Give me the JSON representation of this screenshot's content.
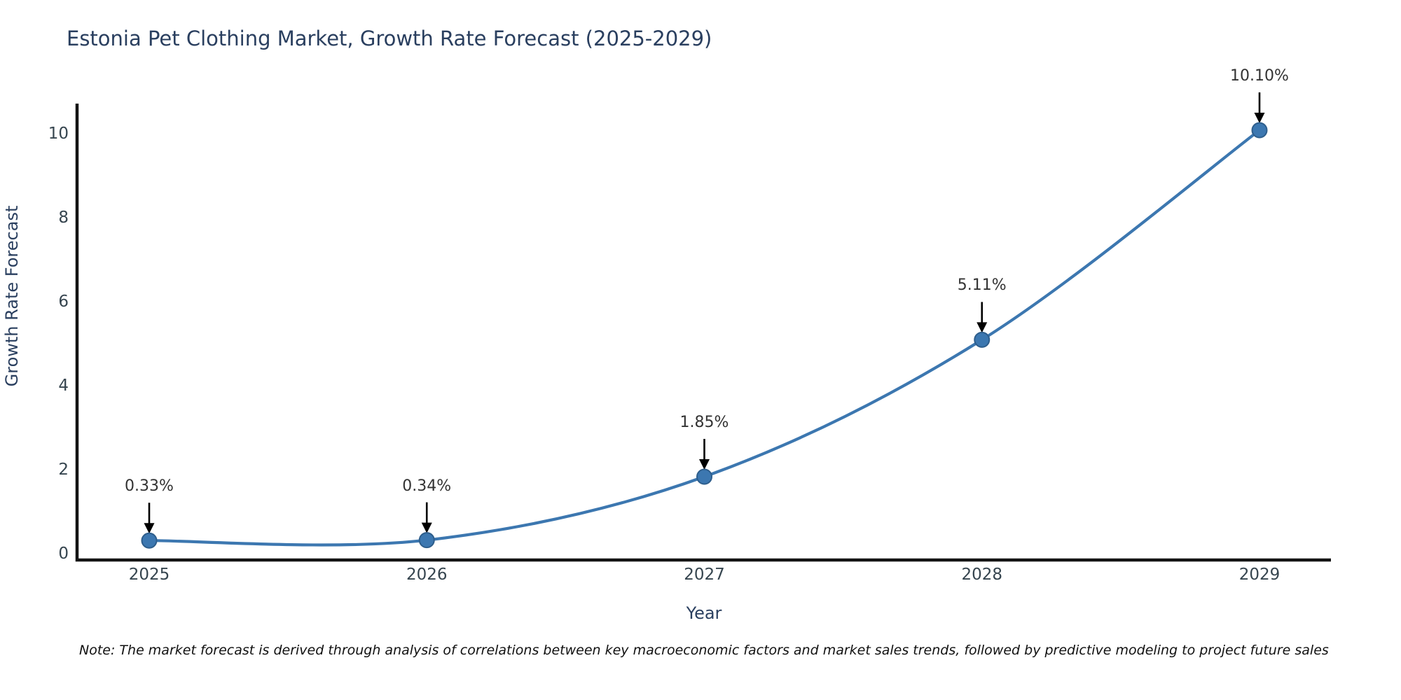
{
  "chart_data": {
    "type": "line",
    "title": "Estonia Pet Clothing Market, Growth Rate Forecast (2025-2029)",
    "xlabel": "Year",
    "ylabel": "Growth Rate Forecast",
    "categories": [
      "2025",
      "2026",
      "2027",
      "2028",
      "2029"
    ],
    "series": [
      {
        "name": "Growth Rate Forecast",
        "values": [
          0.33,
          0.34,
          1.85,
          5.11,
          10.1
        ],
        "point_labels": [
          "0.33%",
          "0.34%",
          "1.85%",
          "5.11%",
          "10.10%"
        ]
      }
    ],
    "yticks": [
      "0",
      "2",
      "4",
      "6",
      "8",
      "10"
    ],
    "ytick_values": [
      0,
      2,
      4,
      6,
      8,
      10
    ],
    "ylim": [
      0,
      10.85
    ],
    "grid": false,
    "legend_position": "none",
    "line_style": "smooth-spline",
    "annotation_style": "value-label-with-down-arrow",
    "note": "Note: The market forecast is derived through analysis of correlations between key macroeconomic factors and market sales trends, followed by predictive modeling to project future sales"
  },
  "colors": {
    "background": "#ffffff",
    "title": "#2a3f5f",
    "tick": "#36454f",
    "annotation": "#333333",
    "note": "#111111",
    "line": "#3c77b0",
    "marker_fill": "#3c77b0",
    "marker_edge": "#2e5e8c",
    "axis": "#141414",
    "arrow": "#000000"
  }
}
